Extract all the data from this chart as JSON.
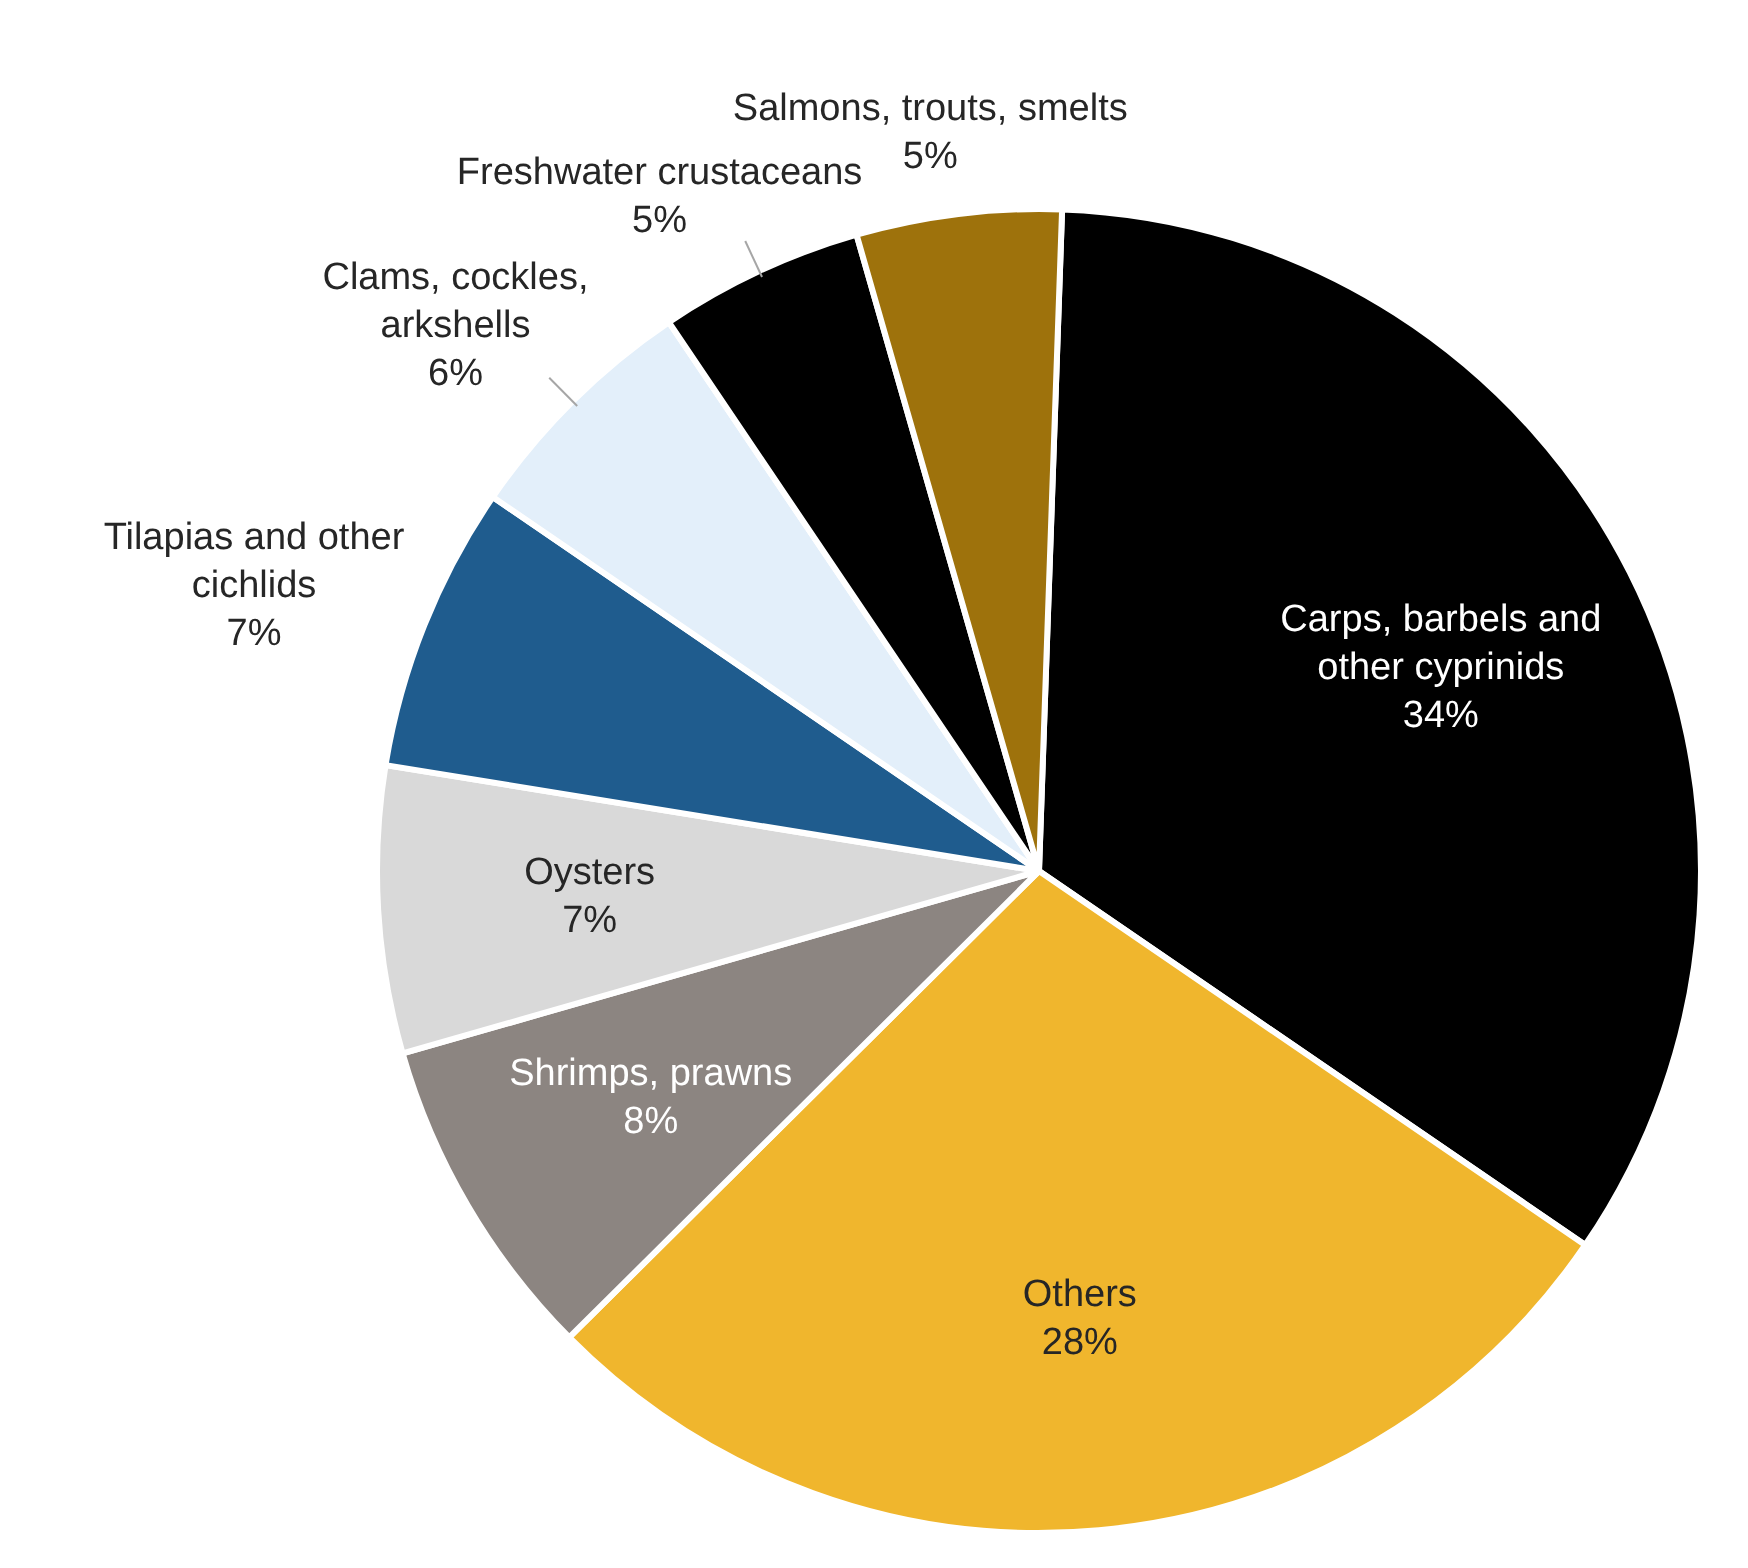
{
  "chart_data": {
    "type": "pie",
    "categories": [
      "Carps, barbels and other cyprinids",
      "Others",
      "Shrimps, prawns",
      "Oysters",
      "Tilapias and other cichlids",
      "Clams, cockles, arkshells",
      "Freshwater crustaceans",
      "Salmons, trouts, smelts"
    ],
    "values": [
      34,
      28,
      8,
      7,
      7,
      6,
      5,
      5
    ],
    "value_labels": [
      "34%",
      "28%",
      "8%",
      "7%",
      "7%",
      "6%",
      "5%",
      "5%"
    ],
    "colors": [
      "#000000",
      "#f0b62d",
      "#8c8581",
      "#d9d9d9",
      "#1f5c8e",
      "#e3effa",
      "#000000",
      "#9e720c"
    ],
    "legend": false
  }
}
